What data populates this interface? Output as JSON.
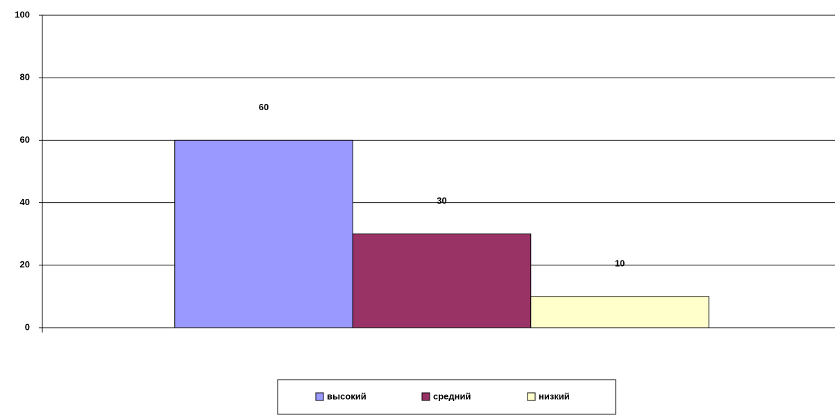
{
  "chart_data": {
    "type": "bar",
    "categories": [
      null
    ],
    "series": [
      {
        "name": "высокий",
        "color": "#9999ff",
        "values": [
          60
        ]
      },
      {
        "name": "средний",
        "color": "#993366",
        "values": [
          30
        ]
      },
      {
        "name": "низкий",
        "color": "#ffffcc",
        "values": [
          10
        ]
      }
    ],
    "ylim": [
      0,
      100
    ],
    "yticks": [
      0,
      20,
      40,
      60,
      80,
      100
    ],
    "grid": true,
    "legend": "bottom"
  }
}
